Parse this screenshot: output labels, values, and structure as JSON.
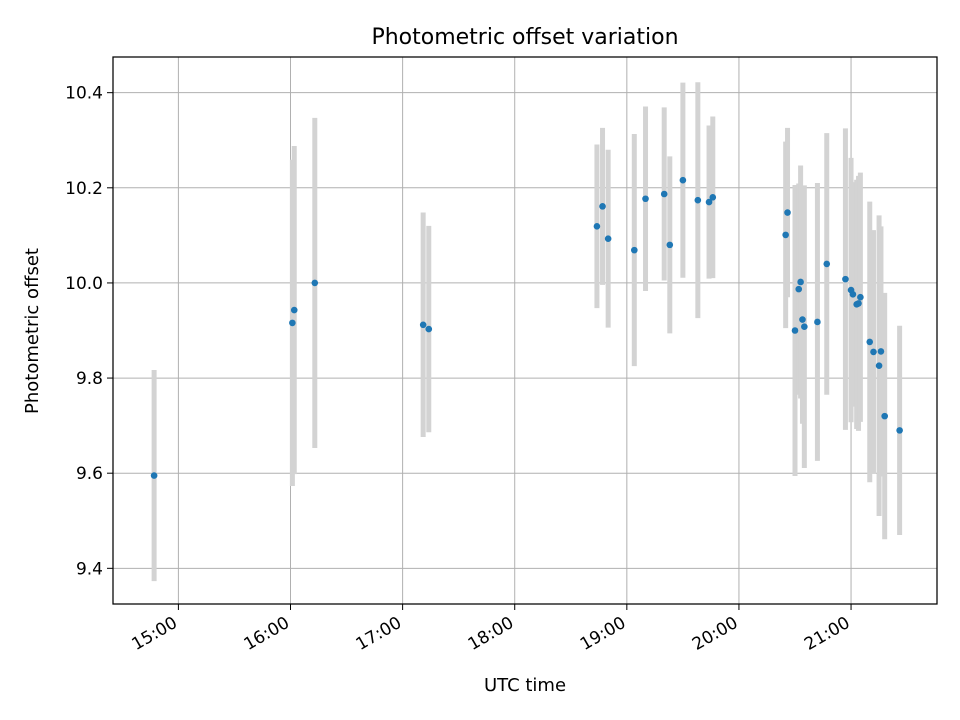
{
  "chart_data": {
    "type": "scatter",
    "title": "Photometric offset variation",
    "xlabel": "UTC time",
    "ylabel": "Photometric offset",
    "grid": true,
    "xlim": [
      "14:25",
      "21:46"
    ],
    "ylim": [
      9.325,
      10.475
    ],
    "x_ticks": [
      "15:00",
      "16:00",
      "17:00",
      "18:00",
      "19:00",
      "20:00",
      "21:00"
    ],
    "y_ticks": [
      "9.4",
      "9.6",
      "9.8",
      "10.0",
      "10.2",
      "10.4"
    ],
    "marker_color": "#1f77b4",
    "errorbar_color": "#d3d3d3",
    "points": [
      {
        "x": "14:47",
        "y": 9.595,
        "yerr": 0.222
      },
      {
        "x": "16:01",
        "y": 9.916,
        "yerr": 0.343
      },
      {
        "x": "16:02",
        "y": 9.943,
        "yerr": 0.345
      },
      {
        "x": "16:13",
        "y": 10.0,
        "yerr": 0.347
      },
      {
        "x": "17:11",
        "y": 9.912,
        "yerr": 0.236
      },
      {
        "x": "17:14",
        "y": 9.903,
        "yerr": 0.217
      },
      {
        "x": "18:44",
        "y": 10.119,
        "yerr": 0.172
      },
      {
        "x": "18:47",
        "y": 10.161,
        "yerr": 0.165
      },
      {
        "x": "18:50",
        "y": 10.093,
        "yerr": 0.187
      },
      {
        "x": "19:04",
        "y": 10.069,
        "yerr": 0.244
      },
      {
        "x": "19:10",
        "y": 10.177,
        "yerr": 0.194
      },
      {
        "x": "19:20",
        "y": 10.187,
        "yerr": 0.182
      },
      {
        "x": "19:23",
        "y": 10.08,
        "yerr": 0.186
      },
      {
        "x": "19:30",
        "y": 10.216,
        "yerr": 0.205
      },
      {
        "x": "19:38",
        "y": 10.174,
        "yerr": 0.248
      },
      {
        "x": "19:44",
        "y": 10.17,
        "yerr": 0.161
      },
      {
        "x": "19:46",
        "y": 10.18,
        "yerr": 0.17
      },
      {
        "x": "20:25",
        "y": 10.101,
        "yerr": 0.196
      },
      {
        "x": "20:26",
        "y": 10.148,
        "yerr": 0.178
      },
      {
        "x": "20:30",
        "y": 9.9,
        "yerr": 0.306
      },
      {
        "x": "20:32",
        "y": 9.987,
        "yerr": 0.222
      },
      {
        "x": "20:33",
        "y": 10.002,
        "yerr": 0.245
      },
      {
        "x": "20:34",
        "y": 9.923,
        "yerr": 0.219
      },
      {
        "x": "20:35",
        "y": 9.908,
        "yerr": 0.297
      },
      {
        "x": "20:42",
        "y": 9.918,
        "yerr": 0.292
      },
      {
        "x": "20:47",
        "y": 10.04,
        "yerr": 0.275
      },
      {
        "x": "20:57",
        "y": 10.008,
        "yerr": 0.317
      },
      {
        "x": "21:00",
        "y": 9.985,
        "yerr": 0.278
      },
      {
        "x": "21:01",
        "y": 9.976,
        "yerr": 0.236
      },
      {
        "x": "21:03",
        "y": 9.955,
        "yerr": 0.262
      },
      {
        "x": "21:04",
        "y": 9.957,
        "yerr": 0.268
      },
      {
        "x": "21:05",
        "y": 9.97,
        "yerr": 0.262
      },
      {
        "x": "21:10",
        "y": 9.876,
        "yerr": 0.295
      },
      {
        "x": "21:12",
        "y": 9.855,
        "yerr": 0.256
      },
      {
        "x": "21:15",
        "y": 9.826,
        "yerr": 0.316
      },
      {
        "x": "21:16",
        "y": 9.856,
        "yerr": 0.263
      },
      {
        "x": "21:18",
        "y": 9.72,
        "yerr": 0.259
      },
      {
        "x": "21:26",
        "y": 9.69,
        "yerr": 0.22
      }
    ]
  }
}
